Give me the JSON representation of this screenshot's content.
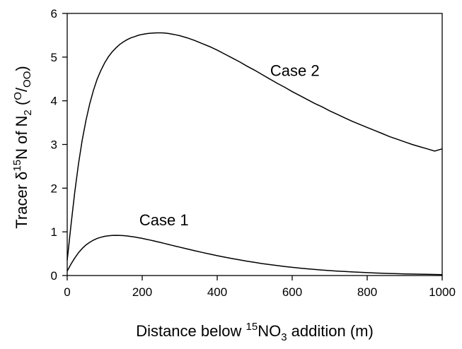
{
  "chart_data": {
    "type": "line",
    "xlabel": {
      "prefix": "Distance below ",
      "superscript": "15",
      "main": "NO",
      "subscript": "3",
      "suffix": " addition (m)"
    },
    "ylabel": {
      "prefix": "Tracer δ",
      "superscript": "15",
      "main": "N of N",
      "subscript": "2",
      "open": " (",
      "permil_sup": "O",
      "permil_slash": "/",
      "permil_sub": "OO",
      "close": ")"
    },
    "xlim": [
      0,
      1000
    ],
    "ylim": [
      0,
      6
    ],
    "xticks": [
      0,
      200,
      400,
      600,
      800,
      1000
    ],
    "xtick_labels": [
      "0",
      "200",
      "400",
      "600",
      "800",
      "1000"
    ],
    "yticks": [
      0,
      1,
      2,
      3,
      4,
      5,
      6
    ],
    "ytick_labels": [
      "0",
      "1",
      "2",
      "3",
      "4",
      "5",
      "6"
    ],
    "grid": false,
    "series": [
      {
        "name": "Case 1",
        "x": [
          0,
          10,
          20,
          30,
          40,
          50,
          60,
          70,
          80,
          90,
          100,
          110,
          120,
          130,
          140,
          150,
          160,
          170,
          180,
          190,
          200,
          210,
          220,
          230,
          240,
          250,
          260,
          270,
          280,
          290,
          300,
          320,
          340,
          360,
          380,
          400,
          420,
          440,
          460,
          480,
          500,
          520,
          540,
          560,
          580,
          600,
          620,
          640,
          660,
          680,
          700,
          720,
          740,
          760,
          780,
          800,
          820,
          840,
          860,
          880,
          900,
          920,
          940,
          960,
          980,
          1000
        ],
        "y": [
          0.1,
          0.26,
          0.4,
          0.52,
          0.62,
          0.7,
          0.76,
          0.81,
          0.85,
          0.877,
          0.897,
          0.91,
          0.917,
          0.92,
          0.918,
          0.913,
          0.905,
          0.894,
          0.881,
          0.866,
          0.85,
          0.832,
          0.814,
          0.794,
          0.774,
          0.754,
          0.733,
          0.712,
          0.691,
          0.67,
          0.65,
          0.608,
          0.568,
          0.529,
          0.491,
          0.455,
          0.42,
          0.388,
          0.357,
          0.328,
          0.3,
          0.274,
          0.25,
          0.228,
          0.207,
          0.188,
          0.17,
          0.154,
          0.139,
          0.126,
          0.113,
          0.102,
          0.092,
          0.082,
          0.074,
          0.066,
          0.059,
          0.053,
          0.047,
          0.042,
          0.038,
          0.034,
          0.03,
          0.027,
          0.024,
          0.021
        ]
      },
      {
        "name": "Case 2",
        "x": [
          0,
          10,
          20,
          30,
          40,
          50,
          60,
          70,
          80,
          90,
          100,
          110,
          120,
          130,
          140,
          150,
          160,
          170,
          180,
          190,
          200,
          210,
          220,
          230,
          240,
          250,
          260,
          270,
          280,
          290,
          300,
          320,
          340,
          360,
          380,
          400,
          420,
          440,
          460,
          480,
          500,
          520,
          540,
          560,
          580,
          600,
          620,
          640,
          660,
          680,
          700,
          720,
          740,
          760,
          780,
          800,
          820,
          840,
          860,
          880,
          900,
          920,
          940,
          960,
          980,
          1000
        ],
        "y": [
          0.35,
          1.15,
          1.9,
          2.55,
          3.1,
          3.55,
          3.93,
          4.24,
          4.5,
          4.7,
          4.87,
          5.01,
          5.12,
          5.21,
          5.29,
          5.35,
          5.4,
          5.44,
          5.47,
          5.5,
          5.52,
          5.535,
          5.545,
          5.55,
          5.555,
          5.555,
          5.55,
          5.54,
          5.525,
          5.51,
          5.49,
          5.44,
          5.38,
          5.31,
          5.24,
          5.16,
          5.07,
          4.98,
          4.89,
          4.79,
          4.7,
          4.6,
          4.5,
          4.4,
          4.31,
          4.21,
          4.12,
          4.03,
          3.94,
          3.86,
          3.77,
          3.69,
          3.61,
          3.53,
          3.46,
          3.39,
          3.32,
          3.25,
          3.18,
          3.12,
          3.06,
          3.0,
          2.95,
          2.9,
          2.85,
          2.9
        ]
      }
    ],
    "annotations": [
      {
        "text": "Case 1",
        "x": 258,
        "y": 1.15
      },
      {
        "text": "Case 2",
        "x": 607,
        "y": 4.57
      }
    ]
  }
}
